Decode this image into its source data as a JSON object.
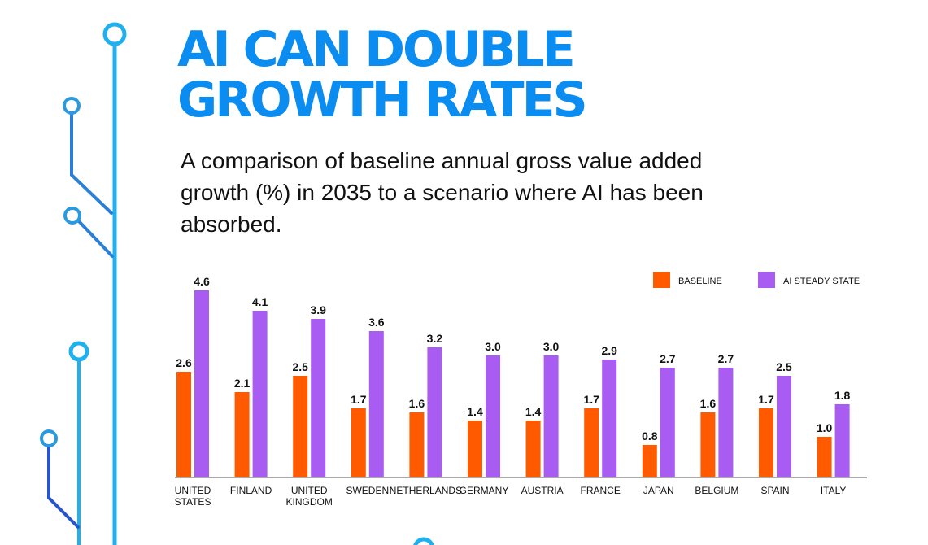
{
  "title": "AI CAN DOUBLE\nGROWTH RATES",
  "subtitle": "A comparison of baseline annual gross value added growth (%) in 2035 to a scenario where AI has been absorbed.",
  "colors": {
    "title": "#0a8cf0",
    "baseline": "#ff5a00",
    "ai": "#a95cf2",
    "decor_light": "#1fb0f0",
    "decor_dark": "#2856c8"
  },
  "chart_data": {
    "type": "bar",
    "title": "",
    "xlabel": "",
    "ylabel": "",
    "ylim": [
      0,
      5
    ],
    "grid": false,
    "legend_position": "top-right",
    "categories": [
      [
        "UNITED",
        "STATES"
      ],
      [
        "FINLAND"
      ],
      [
        "UNITED",
        "KINGDOM"
      ],
      [
        "SWEDEN"
      ],
      [
        "NETHERLANDS"
      ],
      [
        "GERMANY"
      ],
      [
        "AUSTRIA"
      ],
      [
        "FRANCE"
      ],
      [
        "JAPAN"
      ],
      [
        "BELGIUM"
      ],
      [
        "SPAIN"
      ],
      [
        "ITALY"
      ]
    ],
    "series": [
      {
        "name": "BASELINE",
        "color": "#ff5a00",
        "values": [
          2.6,
          2.1,
          2.5,
          1.7,
          1.6,
          1.4,
          1.4,
          1.7,
          0.8,
          1.6,
          1.7,
          1.0
        ],
        "labels": [
          "2.6",
          "2.1",
          "2.5",
          "1.7",
          "1.6",
          "1.4",
          "1.4",
          "1.7",
          "0.8",
          "1.6",
          "1.7",
          "1.0"
        ]
      },
      {
        "name": "AI STEADY STATE",
        "color": "#a95cf2",
        "values": [
          4.6,
          4.1,
          3.9,
          3.6,
          3.2,
          3.0,
          3.0,
          2.9,
          2.7,
          2.7,
          2.5,
          1.8
        ],
        "labels": [
          "4.6",
          "4.1",
          "3.9",
          "3.6",
          "3.2",
          "3.0",
          "3.0",
          "2.9",
          "2.7",
          "2.7",
          "2.5",
          "1.8"
        ]
      }
    ]
  }
}
